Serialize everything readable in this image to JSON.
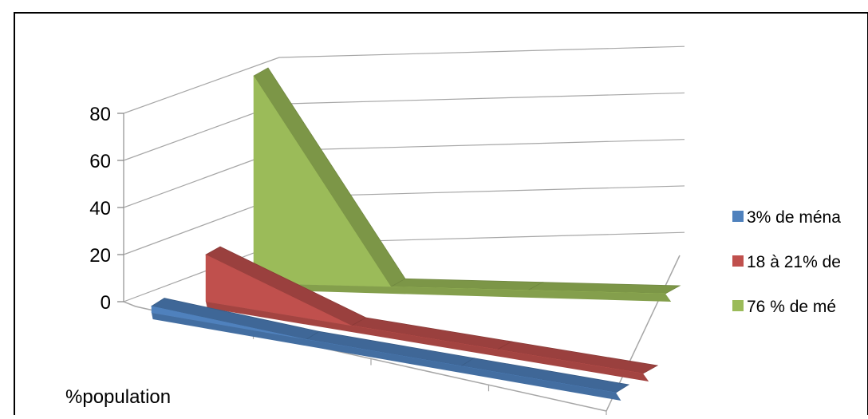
{
  "caption": "… p … … … … g p …",
  "chart_data": {
    "type": "area",
    "subtype": "3d-area",
    "title": "",
    "xlabel": "%population",
    "ylabel": "",
    "ylim": [
      0,
      80
    ],
    "yticks": [
      "0",
      "20",
      "40",
      "60",
      "80"
    ],
    "categories": [
      "",
      "",
      "",
      ""
    ],
    "grid": true,
    "legend": "right",
    "series": [
      {
        "name": "3% de ména",
        "color": "#4f81bd",
        "values": [
          3,
          0,
          0,
          0
        ]
      },
      {
        "name": "18 à 21% de",
        "color": "#c0504d",
        "values": [
          19,
          0,
          0,
          0
        ]
      },
      {
        "name": "76 % de mé",
        "color": "#9bbb59",
        "values": [
          76,
          0,
          0,
          0
        ]
      }
    ]
  }
}
